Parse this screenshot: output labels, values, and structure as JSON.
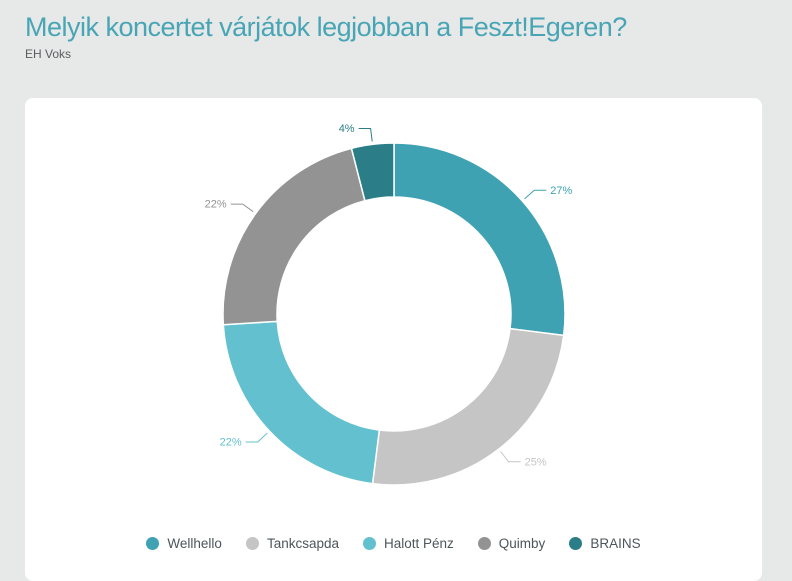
{
  "page": {
    "title": "Melyik koncertet várjátok legjobban a Feszt!Egeren?",
    "subtitle": "EH Voks"
  },
  "colors": {
    "background": "#e7e8e8",
    "card": "#ffffff",
    "title": "#48a5b5",
    "subtitle": "#5a5e60",
    "legend_text": "#4d565b",
    "separator": "#ffffff"
  },
  "chart_data": {
    "type": "pie",
    "subtype": "donut",
    "title": "Melyik koncertet várjátok legjobban a Feszt!Egeren?",
    "subtitle": "EH Voks",
    "categories": [
      "Wellhello",
      "Tankcsapda",
      "Halott Pénz",
      "Quimby",
      "BRAINS"
    ],
    "values": [
      27,
      25,
      22,
      22,
      4
    ],
    "data_labels": [
      "27%",
      "25%",
      "22%",
      "22%",
      "4%"
    ],
    "colors": [
      "#3ea2b3",
      "#c5c5c6",
      "#63c0cf",
      "#939394",
      "#2b7e87"
    ],
    "start_angle_deg": 0,
    "direction": "clockwise",
    "legend_position": "bottom",
    "data_labels_outside": true
  }
}
